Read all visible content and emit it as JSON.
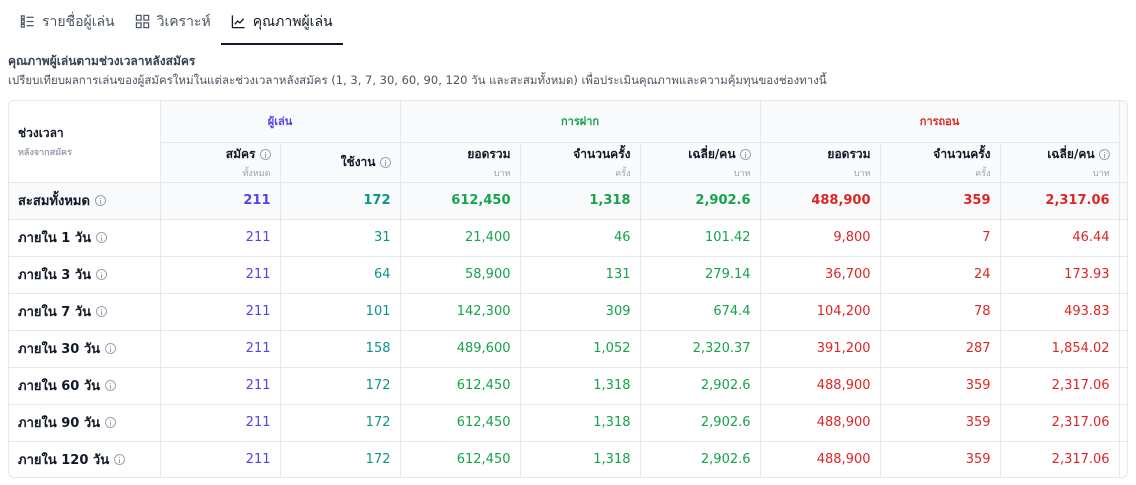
{
  "tabs": [
    {
      "label": "รายชื่อผู้เล่น",
      "icon": "list-icon",
      "active": false
    },
    {
      "label": "วิเคราะห์",
      "icon": "grid-icon",
      "active": false
    },
    {
      "label": "คุณภาพผู้เล่น",
      "icon": "line-chart-icon",
      "active": true
    }
  ],
  "section": {
    "title": "คุณภาพผู้เล่นตามช่วงเวลาหลังสมัคร",
    "subtitle": "เปรียบเทียบผลการเล่นของผู้สมัครใหม่ในแต่ละช่วงเวลาหลังสมัคร (1, 3, 7, 30, 60, 90, 120 วัน และสะสมทั้งหมด) เพื่อประเมินคุณภาพและความคุ้มทุนของช่องทางนี้"
  },
  "table": {
    "groups": {
      "player": "ผู้เล่น",
      "deposit": "การฝาก",
      "withdraw": "การถอน"
    },
    "period_header": {
      "label": "ช่วงเวลา",
      "sub": "หลังจากสมัคร"
    },
    "columns": {
      "registered": {
        "label": "สมัคร",
        "unit": "ทั้งหมด"
      },
      "active": {
        "label": "ใช้งาน",
        "unit": ""
      },
      "dep_total": {
        "label": "ยอดรวม",
        "unit": "บาท"
      },
      "dep_count": {
        "label": "จำนวนครั้ง",
        "unit": "ครั้ง"
      },
      "dep_avg": {
        "label": "เฉลี่ย/คน",
        "unit": "บาท"
      },
      "wd_total": {
        "label": "ยอดรวม",
        "unit": "บาท"
      },
      "wd_count": {
        "label": "จำนวนครั้ง",
        "unit": "ครั้ง"
      },
      "wd_avg": {
        "label": "เฉลี่ย/คน",
        "unit": "บาท"
      }
    },
    "rows": [
      {
        "period": "สะสมทั้งหมด",
        "registered": "211",
        "active": "172",
        "dep_total": "612,450",
        "dep_count": "1,318",
        "dep_avg": "2,902.6",
        "wd_total": "488,900",
        "wd_count": "359",
        "wd_avg": "2,317.06"
      },
      {
        "period": "ภายใน 1 วัน",
        "registered": "211",
        "active": "31",
        "dep_total": "21,400",
        "dep_count": "46",
        "dep_avg": "101.42",
        "wd_total": "9,800",
        "wd_count": "7",
        "wd_avg": "46.44"
      },
      {
        "period": "ภายใน 3 วัน",
        "registered": "211",
        "active": "64",
        "dep_total": "58,900",
        "dep_count": "131",
        "dep_avg": "279.14",
        "wd_total": "36,700",
        "wd_count": "24",
        "wd_avg": "173.93"
      },
      {
        "period": "ภายใน 7 วัน",
        "registered": "211",
        "active": "101",
        "dep_total": "142,300",
        "dep_count": "309",
        "dep_avg": "674.4",
        "wd_total": "104,200",
        "wd_count": "78",
        "wd_avg": "493.83"
      },
      {
        "period": "ภายใน 30 วัน",
        "registered": "211",
        "active": "158",
        "dep_total": "489,600",
        "dep_count": "1,052",
        "dep_avg": "2,320.37",
        "wd_total": "391,200",
        "wd_count": "287",
        "wd_avg": "1,854.02"
      },
      {
        "period": "ภายใน 60 วัน",
        "registered": "211",
        "active": "172",
        "dep_total": "612,450",
        "dep_count": "1,318",
        "dep_avg": "2,902.6",
        "wd_total": "488,900",
        "wd_count": "359",
        "wd_avg": "2,317.06"
      },
      {
        "period": "ภายใน 90 วัน",
        "registered": "211",
        "active": "172",
        "dep_total": "612,450",
        "dep_count": "1,318",
        "dep_avg": "2,902.6",
        "wd_total": "488,900",
        "wd_count": "359",
        "wd_avg": "2,317.06"
      },
      {
        "period": "ภายใน 120 วัน",
        "registered": "211",
        "active": "172",
        "dep_total": "612,450",
        "dep_count": "1,318",
        "dep_avg": "2,902.6",
        "wd_total": "488,900",
        "wd_count": "359",
        "wd_avg": "2,317.06"
      }
    ]
  },
  "colors": {
    "player": "#4f46e5",
    "active": "#0d9488",
    "deposit": "#16a34a",
    "withdraw": "#dc2626"
  }
}
